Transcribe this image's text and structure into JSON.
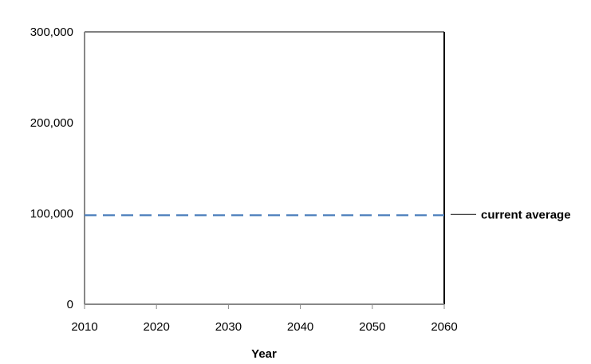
{
  "chart_data": {
    "type": "line",
    "title": "",
    "xlabel": "Year",
    "ylabel": "",
    "xlim": [
      2010,
      2060
    ],
    "ylim": [
      0,
      300000
    ],
    "x_ticks": [
      2010,
      2020,
      2030,
      2040,
      2050,
      2060
    ],
    "x_tick_labels": [
      "2010",
      "2020",
      "2030",
      "2040",
      "2050",
      "2060"
    ],
    "y_ticks": [
      0,
      100000,
      200000,
      300000
    ],
    "y_tick_labels": [
      "0",
      "100,000",
      "200,000",
      "300,000"
    ],
    "grid": false,
    "legend": "none",
    "series": [
      {
        "style": "dashed",
        "color": "#4f81bd",
        "x": [
          2010,
          2060
        ],
        "y": [
          98000,
          98000
        ]
      }
    ],
    "annotations": [
      {
        "text": "current average",
        "target_y": 98000,
        "position": "right"
      }
    ]
  }
}
